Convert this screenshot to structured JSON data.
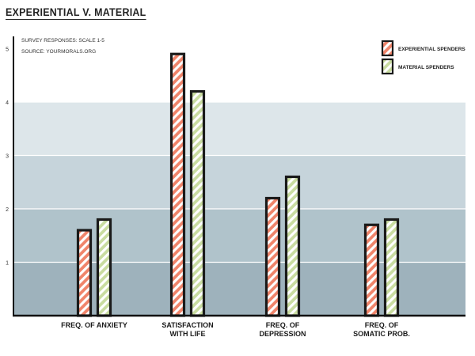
{
  "title": "EXPERIENTIAL V. MATERIAL",
  "notes": {
    "line1": "SURVEY RESPONSES: SCALE 1-5",
    "line2": "SOURCE: YOURMORALS.ORG"
  },
  "colors": {
    "experiential": "#f0846a",
    "material": "#c9dca0",
    "bar_outline": "#1a1a1a",
    "band_colors": [
      "#9eb2bc",
      "#b0c3cb",
      "#c6d4db",
      "#dde6ea",
      "#ffffff"
    ]
  },
  "chart_data": {
    "type": "bar",
    "title": "EXPERIENTIAL V. MATERIAL",
    "categories": [
      "FREQ. OF ANXIETY",
      "SATISFACTION\nWITH LIFE",
      "FREQ. OF\nDEPRESSION",
      "FREQ. OF\nSOMATIC PROB."
    ],
    "series": [
      {
        "name": "EXPERIENTIAL SPENDERS",
        "values": [
          1.6,
          4.9,
          2.2,
          1.7
        ]
      },
      {
        "name": "MATERIAL SPENDERS",
        "values": [
          1.8,
          4.2,
          2.6,
          1.8
        ]
      }
    ],
    "yticks": [
      1,
      2,
      3,
      4,
      5
    ],
    "ylim": [
      0,
      5.2
    ],
    "xlabel": "",
    "ylabel": "",
    "legend_position": "top-right",
    "grid": true
  }
}
